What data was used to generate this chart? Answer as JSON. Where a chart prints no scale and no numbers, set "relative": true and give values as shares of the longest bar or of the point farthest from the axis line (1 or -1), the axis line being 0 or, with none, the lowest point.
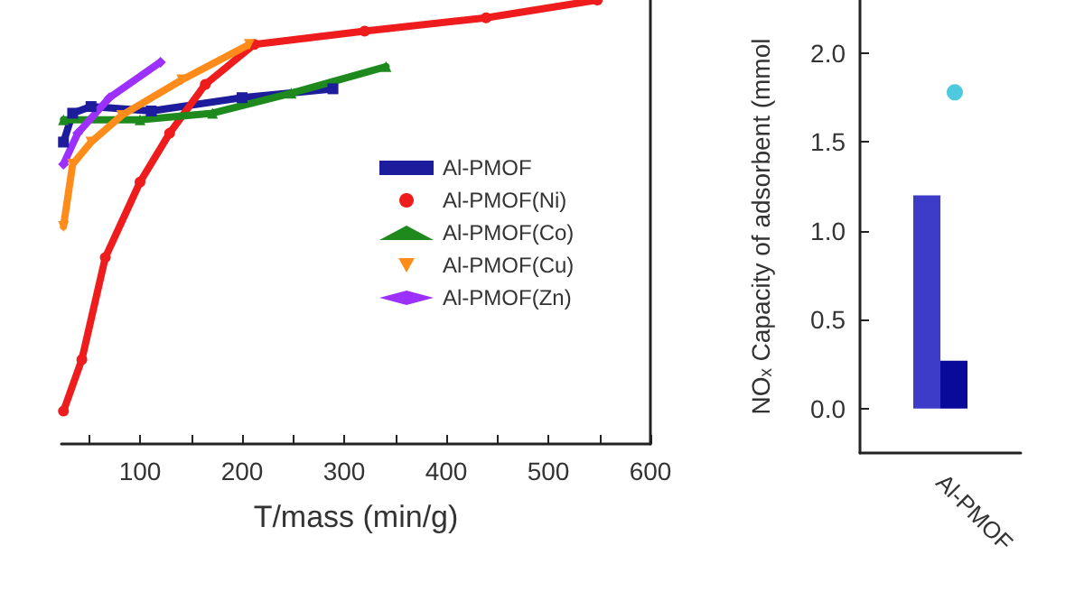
{
  "chart_data": [
    {
      "type": "line",
      "xlabel": "T/mass (min/g)",
      "relative": true,
      "legend": "right",
      "tick_labels": "x",
      "grid": false,
      "xlim": [
        23,
        600
      ],
      "xticks": [
        {
          "value": 50,
          "label": null
        },
        100,
        {
          "value": 150,
          "label": null
        },
        200,
        {
          "value": 250,
          "label": null
        },
        300,
        {
          "value": 350,
          "label": null
        },
        400,
        {
          "value": 450,
          "label": null
        },
        500,
        {
          "value": 550,
          "label": null
        },
        600
      ],
      "series": [
        {
          "name": "Al-PMOF",
          "color": "#1c1c9c",
          "marker": "square",
          "x": [
            25,
            34,
            52,
            111,
            200,
            289
          ],
          "values": [
            0.68,
            0.745,
            0.76,
            0.75,
            0.78,
            0.8
          ]
        },
        {
          "name": "Al-PMOF(Ni)",
          "color": "#ee1c1c",
          "marker": "circle",
          "x": [
            25,
            43,
            66,
            100,
            129,
            164,
            212,
            320,
            439,
            548
          ],
          "values": [
            0.074,
            0.19,
            0.42,
            0.59,
            0.7,
            0.81,
            0.9,
            0.93,
            0.96,
            1
          ]
        },
        {
          "name": "Al-PMOF(Co)",
          "color": "#1e8a1e",
          "marker": "triangle",
          "x": [
            25,
            100,
            171,
            248,
            341
          ],
          "values": [
            0.73,
            0.73,
            0.745,
            0.79,
            0.85
          ]
        },
        {
          "name": "Al-PMOF(Cu)",
          "color": "#ff8c1a",
          "marker": "triangle-down",
          "x": [
            25,
            34,
            52,
            82,
            141,
            207
          ],
          "values": [
            0.49,
            0.63,
            0.68,
            0.74,
            0.82,
            0.9
          ]
        },
        {
          "name": "Al-PMOF(Zn)",
          "color": "#9b30ff",
          "marker": "diamond",
          "x": [
            25,
            39,
            70,
            120
          ],
          "values": [
            0.63,
            0.7,
            0.78,
            0.86
          ]
        }
      ]
    },
    {
      "type": "bar",
      "ylabel": "NOₓ Capacity of adsorbent (mmol",
      "categories": [
        "Al-PMOF"
      ],
      "ylim": [
        -0.25,
        2.3
      ],
      "grid": false,
      "legend": false,
      "yticks": [
        {
          "value": 0,
          "label": "0.0"
        },
        {
          "value": 0.5,
          "label": "0.5"
        },
        {
          "value": 1,
          "label": "1.0"
        },
        {
          "value": 1.5,
          "label": "1.5"
        },
        {
          "value": 2,
          "label": "2.0"
        }
      ],
      "series": [
        {
          "color": "#3c3cc8",
          "values": [
            1.2
          ]
        },
        {
          "color": "#0a0a9a",
          "values": [
            0.27
          ]
        },
        {
          "type": "scatter",
          "color": "#22bcd6",
          "x": [
            "Al-PMOF"
          ],
          "values": [
            1.78
          ]
        }
      ]
    }
  ]
}
